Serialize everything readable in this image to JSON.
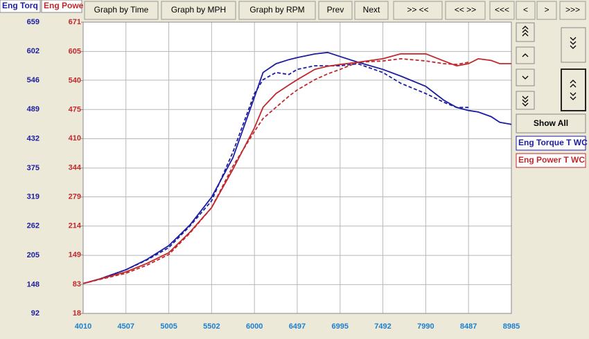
{
  "tabs": [
    "Eng Torq",
    "Eng Powe"
  ],
  "buttons": [
    "Graph by Time",
    "Graph by MPH",
    "Graph by RPM",
    "Prev",
    "Next",
    ">> <<",
    "<< >>",
    "<<<",
    "<",
    ">",
    ">>>"
  ],
  "show_all": "Show All",
  "chart_data": {
    "type": "line",
    "x": [
      4010,
      4200,
      4507,
      4750,
      5005,
      5250,
      5502,
      5750,
      6000,
      6100,
      6250,
      6400,
      6497,
      6700,
      6850,
      6995,
      7200,
      7492,
      7700,
      7990,
      8200,
      8350,
      8487,
      8600,
      8750,
      8850,
      8985
    ],
    "xlim": [
      4010,
      8985
    ],
    "xticks": [
      4010,
      4507,
      5005,
      5502,
      6000,
      6497,
      6995,
      7492,
      7990,
      8487,
      8985
    ],
    "ylim": [
      92,
      659
    ],
    "yticks": [
      659,
      602,
      546,
      489,
      432,
      375,
      319,
      262,
      205,
      148,
      92
    ],
    "y2lim": [
      18,
      671
    ],
    "y2ticks": [
      671,
      605,
      540,
      475,
      410,
      344,
      279,
      214,
      149,
      83,
      18
    ],
    "grid": true,
    "series": [
      {
        "name": "Eng Torque T WC",
        "color": "#1c1ca0",
        "linestyle": "solid",
        "values": [
          150,
          159,
          177,
          197,
          224,
          264,
          318,
          395,
          513,
          561,
          578,
          586,
          590,
          597,
          600,
          592,
          581,
          567,
          554,
          534,
          507,
          493,
          487,
          484,
          475,
          464,
          460
        ]
      },
      {
        "color": "#1c1ca0",
        "linestyle": "dashed",
        "values": [
          150,
          159,
          177,
          196,
          220,
          262,
          311,
          406,
          520,
          547,
          561,
          557,
          567,
          574,
          574,
          574,
          578,
          561,
          540,
          520,
          503,
          493,
          493,
          null,
          null,
          null,
          null
        ]
      },
      {
        "name": "Eng Power T WC",
        "color": "#c0282c",
        "linestyle": "solid",
        "axis": "y2",
        "values": [
          85,
          95,
          111,
          130,
          154,
          200,
          255,
          341,
          434,
          480,
          511,
          530,
          542,
          565,
          572,
          576,
          581,
          589,
          600,
          600,
          584,
          573,
          578,
          589,
          585,
          578,
          578
        ]
      },
      {
        "color": "#c0282c",
        "linestyle": "dashed",
        "axis": "y2",
        "values": [
          85,
          94,
          108,
          126,
          150,
          198,
          255,
          348,
          426,
          455,
          480,
          505,
          519,
          542,
          555,
          565,
          581,
          584,
          589,
          584,
          578,
          576,
          581,
          null,
          null,
          null,
          null
        ]
      }
    ]
  }
}
